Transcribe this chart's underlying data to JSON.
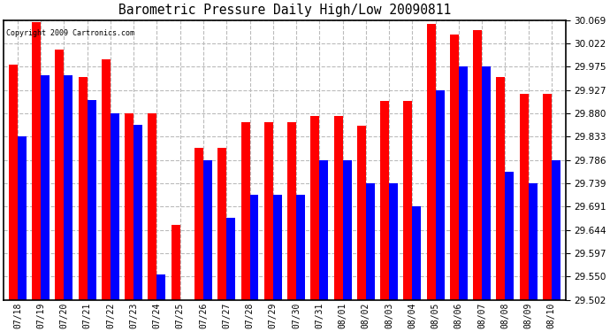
{
  "title": "Barometric Pressure Daily High/Low 20090811",
  "copyright": "Copyright 2009 Cartronics.com",
  "dates": [
    "07/18",
    "07/19",
    "07/20",
    "07/21",
    "07/22",
    "07/23",
    "07/24",
    "07/25",
    "07/26",
    "07/27",
    "07/28",
    "07/29",
    "07/30",
    "07/31",
    "08/01",
    "08/02",
    "08/03",
    "08/04",
    "08/05",
    "08/06",
    "08/07",
    "08/08",
    "08/09",
    "08/10"
  ],
  "highs": [
    29.98,
    30.065,
    30.01,
    29.955,
    29.99,
    29.88,
    29.88,
    29.655,
    29.81,
    29.81,
    29.862,
    29.862,
    29.862,
    29.875,
    29.875,
    29.855,
    29.905,
    29.905,
    30.062,
    30.04,
    30.05,
    29.955,
    29.92,
    29.92
  ],
  "lows": [
    29.833,
    29.957,
    29.957,
    29.908,
    29.88,
    29.857,
    29.553,
    29.502,
    29.786,
    29.668,
    29.715,
    29.715,
    29.715,
    29.786,
    29.786,
    29.739,
    29.739,
    29.692,
    29.927,
    29.975,
    29.975,
    29.762,
    29.739,
    29.786
  ],
  "ymin": 29.502,
  "ymax": 30.069,
  "yticks": [
    29.502,
    29.55,
    29.597,
    29.644,
    29.691,
    29.739,
    29.786,
    29.833,
    29.88,
    29.927,
    29.975,
    30.022,
    30.069
  ],
  "high_color": "#FF0000",
  "low_color": "#0000FF",
  "bg_color": "#FFFFFF",
  "grid_color": "#AAAAAA",
  "bar_width": 0.38
}
